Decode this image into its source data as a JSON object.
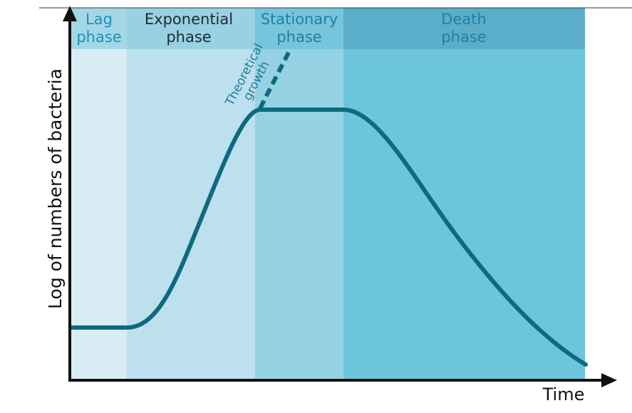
{
  "chart_data": {
    "type": "line",
    "title": "",
    "xlabel": "Time",
    "ylabel": "Log of numbers of bacteria",
    "phases": [
      {
        "line1": "Lag",
        "line2": "phase",
        "fill": "#d8ecf3",
        "header_fill": "#a3d7e6",
        "text_color": "#1f8fb5"
      },
      {
        "line1": "Exponential",
        "line2": "phase",
        "fill": "#bde0ef",
        "header_fill": "#98d1e3",
        "text_color": "#1d2a32"
      },
      {
        "line1": "Stationary",
        "line2": "phase",
        "fill": "#95d3e4",
        "header_fill": "#77c5dc",
        "text_color": "#1f7fa6"
      },
      {
        "line1": "Death",
        "line2": "phase",
        "fill": "#6cc4dd",
        "header_fill": "#5aaec9",
        "text_color": "#1f7fa6"
      }
    ],
    "annotation": {
      "line1": "Theoretical",
      "line2": "growth",
      "color": "#1e7a99"
    },
    "curve_color": "#0e6a80",
    "axis_color": "#111111",
    "grid": false,
    "legend": "none"
  }
}
